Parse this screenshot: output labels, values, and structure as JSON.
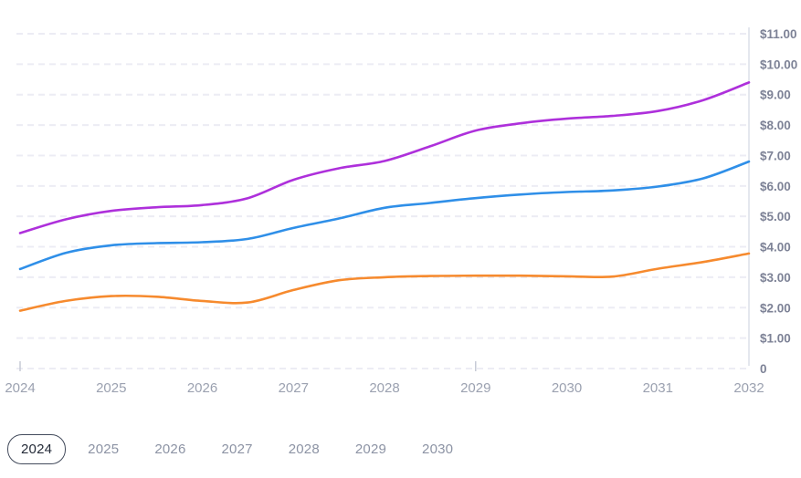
{
  "chart_data": {
    "type": "line",
    "title": "",
    "legend": "none",
    "y_axis_position": "right",
    "grid": "horizontal-dashed",
    "xlim": [
      2024,
      2032
    ],
    "ylim": [
      0,
      11
    ],
    "x": [
      2024,
      2024.5,
      2025,
      2025.5,
      2026,
      2026.5,
      2027,
      2027.5,
      2028,
      2028.5,
      2029,
      2029.5,
      2030,
      2030.5,
      2031,
      2031.5,
      2032
    ],
    "x_tick_labels": [
      "2024",
      "2025",
      "2026",
      "2027",
      "2028",
      "2029",
      "2030",
      "2031",
      "2032"
    ],
    "x_tick_years": [
      2024,
      2025,
      2026,
      2027,
      2028,
      2029,
      2030,
      2031,
      2032
    ],
    "x_minor_tick_years": [
      2024,
      2029
    ],
    "y_tick_values": [
      0,
      1,
      2,
      3,
      4,
      5,
      6,
      7,
      8,
      9,
      10,
      11
    ],
    "y_tick_labels": [
      "0",
      "$1.00",
      "$2.00",
      "$3.00",
      "$4.00",
      "$5.00",
      "$6.00",
      "$7.00",
      "$8.00",
      "$9.00",
      "$10.00",
      "$11.00"
    ],
    "series": [
      {
        "name": "purple-series",
        "color": "#ae30db",
        "values": [
          4.45,
          4.9,
          5.18,
          5.3,
          5.37,
          5.6,
          6.2,
          6.58,
          6.82,
          7.3,
          7.82,
          8.06,
          8.21,
          8.3,
          8.46,
          8.82,
          9.4
        ]
      },
      {
        "name": "blue-series",
        "color": "#2f8fe8",
        "values": [
          3.27,
          3.8,
          4.05,
          4.12,
          4.15,
          4.26,
          4.62,
          4.93,
          5.28,
          5.44,
          5.6,
          5.72,
          5.8,
          5.85,
          5.98,
          6.25,
          6.8
        ]
      },
      {
        "name": "orange-series",
        "color": "#f68a2e",
        "values": [
          1.9,
          2.22,
          2.38,
          2.36,
          2.22,
          2.17,
          2.58,
          2.9,
          3.0,
          3.04,
          3.05,
          3.05,
          3.03,
          3.02,
          3.28,
          3.5,
          3.78
        ]
      }
    ]
  },
  "style": {
    "grid_color": "#ececf4",
    "axis_line_color": "#dcdfe8",
    "tick_color": "#c7cbd6",
    "y_label_color": "#7d8296",
    "x_label_color": "#9ba1b0"
  },
  "year_filter": {
    "selected": "2024",
    "options": [
      "2024",
      "2025",
      "2026",
      "2027",
      "2028",
      "2029",
      "2030"
    ]
  }
}
